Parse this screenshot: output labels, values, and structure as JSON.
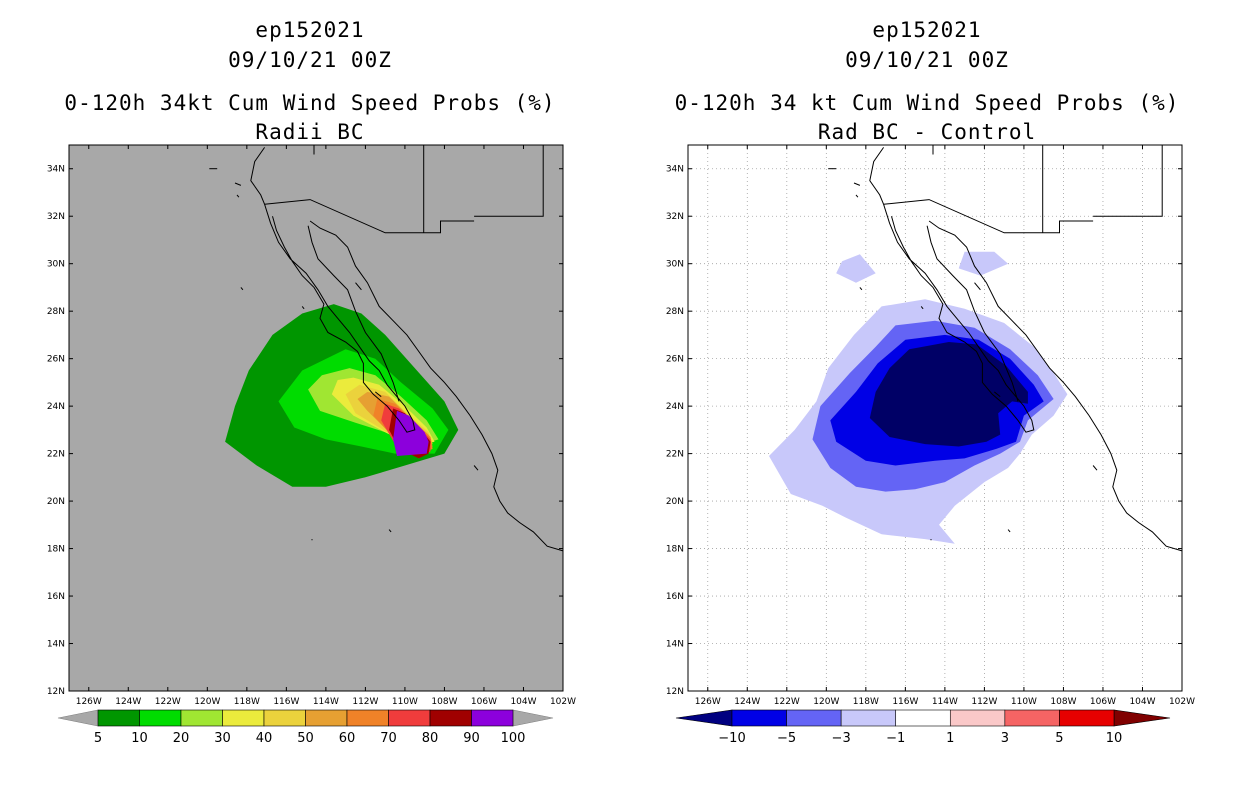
{
  "chart_data": [
    {
      "type": "heatmap",
      "title_lines": [
        "ep152021",
        "09/10/21 00Z",
        "0-120h 34kt Cum Wind Speed Probs (%)",
        "Radii BC"
      ],
      "xlabel": "",
      "ylabel": "",
      "x_ticks": [
        "126W",
        "124W",
        "122W",
        "120W",
        "118W",
        "116W",
        "114W",
        "112W",
        "110W",
        "108W",
        "106W",
        "104W",
        "102W"
      ],
      "y_ticks": [
        "12N",
        "14N",
        "16N",
        "18N",
        "20N",
        "22N",
        "24N",
        "26N",
        "28N",
        "30N",
        "32N",
        "34N"
      ],
      "xlim": [
        -127,
        -102
      ],
      "ylim": [
        12,
        35
      ],
      "background_color": "#a8a8a8",
      "grid": false,
      "colorbar": {
        "levels": [
          "5",
          "10",
          "20",
          "30",
          "40",
          "50",
          "60",
          "70",
          "80",
          "90",
          "100"
        ],
        "colors": [
          "#009600",
          "#00dc00",
          "#a0e632",
          "#ebeb3c",
          "#ebd23c",
          "#e6a032",
          "#f08228",
          "#f03c3c",
          "#a00000",
          "#8c00dc"
        ],
        "end_colors": [
          "#a8a8a8",
          "#a8a8a8"
        ]
      }
    },
    {
      "type": "heatmap",
      "title_lines": [
        "ep152021",
        "09/10/21 00Z",
        "0-120h 34 kt Cum Wind Speed Probs (%)",
        "Rad BC - Control"
      ],
      "xlabel": "",
      "ylabel": "",
      "x_ticks": [
        "126W",
        "124W",
        "122W",
        "120W",
        "118W",
        "116W",
        "114W",
        "112W",
        "110W",
        "108W",
        "106W",
        "104W",
        "102W"
      ],
      "y_ticks": [
        "12N",
        "14N",
        "16N",
        "18N",
        "20N",
        "22N",
        "24N",
        "26N",
        "28N",
        "30N",
        "32N",
        "34N"
      ],
      "xlim": [
        -127,
        -102
      ],
      "ylim": [
        12,
        35
      ],
      "background_color": "#ffffff",
      "grid": true,
      "colorbar": {
        "levels": [
          "-10",
          "-5",
          "-3",
          "-1",
          "1",
          "3",
          "5",
          "10"
        ],
        "colors": [
          "#0000e6",
          "#6464f5",
          "#c8c8fa",
          "#ffffff",
          "#fac8c8",
          "#f56464",
          "#e60000"
        ],
        "end_colors": [
          "#000080",
          "#800000"
        ]
      }
    }
  ],
  "colors": {
    "p5": "#009600",
    "p10": "#00dc00",
    "p20": "#a0e632",
    "p30": "#ebeb3c",
    "p40": "#ebd23c",
    "p50": "#e6a032",
    "p60": "#f08228",
    "p70": "#f03c3c",
    "p80": "#a00000",
    "p90": "#8c00dc",
    "dm10": "#000066",
    "dm5": "#0000e6",
    "dm3": "#6464f5",
    "dm1": "#c8c8fa"
  }
}
